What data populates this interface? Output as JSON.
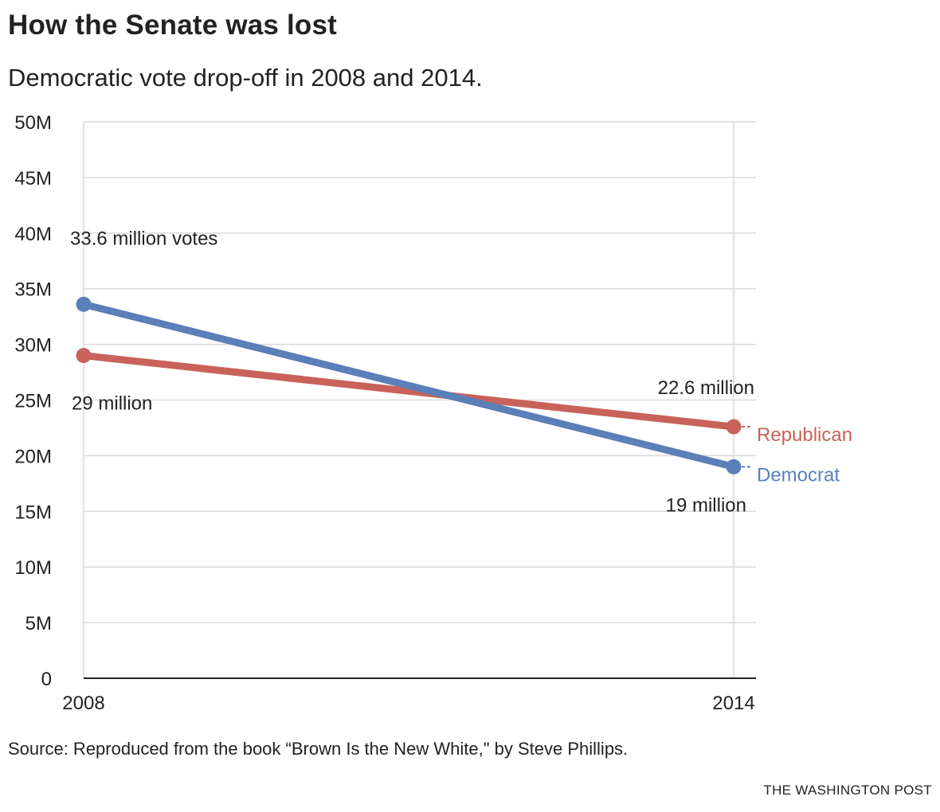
{
  "header": {
    "title": "How the Senate was lost",
    "subtitle": "Democratic vote drop-off in 2008 and 2014."
  },
  "footer": {
    "source": "Source: Reproduced from the book “Brown Is the New White,\" by Steve Phillips.",
    "credit": "THE WASHINGTON POST"
  },
  "chart_data": {
    "type": "line",
    "title": "How the Senate was lost",
    "subtitle": "Democratic vote drop-off in 2008 and 2014.",
    "xlabel": "",
    "ylabel": "",
    "x": [
      "2008",
      "2014"
    ],
    "ylim": [
      0,
      50
    ],
    "yticks": [
      0,
      5,
      10,
      15,
      20,
      25,
      30,
      35,
      40,
      45,
      50
    ],
    "ytick_labels": [
      "0",
      "5M",
      "10M",
      "15M",
      "20M",
      "25M",
      "30M",
      "35M",
      "40M",
      "45M",
      "50M"
    ],
    "grid": true,
    "series": [
      {
        "name": "Republican",
        "color": "#c8625a",
        "values": [
          29,
          22.6
        ],
        "labels": [
          "29 million",
          "22.6 million"
        ]
      },
      {
        "name": "Democrat",
        "color": "#5b7fb8",
        "values": [
          33.6,
          19
        ],
        "labels": [
          "33.6 million votes",
          "19 million"
        ]
      }
    ]
  }
}
